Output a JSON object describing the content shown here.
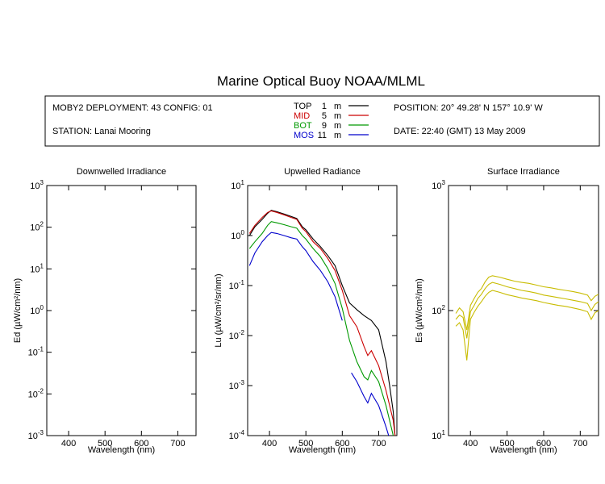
{
  "title": "Marine Optical Buoy NOAA/MLML",
  "header": {
    "deployment": "MOBY2 DEPLOYMENT: 43 CONFIG: 01",
    "station": "STATION: Lanai Mooring",
    "position": "POSITION: 20° 49.28' N   157° 10.9' W",
    "date": "DATE: 22:40 (GMT) 13 May 2009",
    "legend": [
      {
        "name": "TOP",
        "depth": "1",
        "unit": "m",
        "color": "#000000"
      },
      {
        "name": "MID",
        "depth": "5",
        "unit": "m",
        "color": "#cc0000"
      },
      {
        "name": "BOT",
        "depth": "9",
        "unit": "m",
        "color": "#009900"
      },
      {
        "name": "MOS",
        "depth": "11",
        "unit": "m",
        "color": "#0000cc"
      }
    ]
  },
  "chart_data": [
    {
      "type": "line",
      "title": "Downwelled Irradiance",
      "xlabel": "Wavelength (nm)",
      "ylabel": "Ed  (µW/cm²/nm)",
      "xlim": [
        340,
        750
      ],
      "ylim": [
        0.001,
        1000
      ],
      "yscale": "log",
      "xticks": [
        400,
        500,
        600,
        700
      ],
      "yticks": [
        0.001,
        0.01,
        0.1,
        1,
        10,
        100,
        1000
      ],
      "series": []
    },
    {
      "type": "line",
      "title": "Upwelled Radiance",
      "xlabel": "Wavelength (nm)",
      "ylabel": "Lu  (µW/cm²/sr/nm)",
      "xlim": [
        340,
        750
      ],
      "ylim": [
        0.0001,
        10
      ],
      "yscale": "log",
      "xticks": [
        400,
        500,
        600,
        700
      ],
      "yticks": [
        0.0001,
        0.001,
        0.01,
        0.1,
        1,
        10
      ],
      "series": [
        {
          "name": "TOP",
          "color": "#000000",
          "x": [
            345,
            360,
            380,
            395,
            405,
            420,
            440,
            460,
            475,
            490,
            500,
            520,
            540,
            560,
            580,
            600,
            620,
            640,
            660,
            680,
            700,
            720,
            730,
            740,
            745
          ],
          "y": [
            1.0,
            1.5,
            2.1,
            2.8,
            3.2,
            3.0,
            2.7,
            2.4,
            2.2,
            1.5,
            1.3,
            0.85,
            0.6,
            0.4,
            0.25,
            0.1,
            0.045,
            0.033,
            0.025,
            0.02,
            0.013,
            0.003,
            0.001,
            0.0003,
            0.0001
          ]
        },
        {
          "name": "MID",
          "color": "#cc0000",
          "x": [
            345,
            360,
            380,
            395,
            405,
            420,
            440,
            460,
            475,
            490,
            500,
            520,
            540,
            560,
            580,
            600,
            620,
            640,
            660,
            670,
            680,
            700,
            720,
            740,
            745
          ],
          "y": [
            1.1,
            1.6,
            2.3,
            2.9,
            3.1,
            2.9,
            2.6,
            2.3,
            2.1,
            1.4,
            1.2,
            0.75,
            0.55,
            0.35,
            0.2,
            0.08,
            0.025,
            0.015,
            0.006,
            0.004,
            0.005,
            0.0025,
            0.0008,
            0.0002,
            0.0001
          ]
        },
        {
          "name": "BOT",
          "color": "#009900",
          "x": [
            345,
            360,
            380,
            395,
            405,
            420,
            440,
            460,
            475,
            490,
            500,
            520,
            540,
            560,
            580,
            600,
            620,
            640,
            660,
            670,
            680,
            700,
            720,
            740,
            745
          ],
          "y": [
            0.55,
            0.75,
            1.1,
            1.6,
            1.9,
            1.8,
            1.65,
            1.5,
            1.4,
            1.0,
            0.85,
            0.55,
            0.38,
            0.22,
            0.11,
            0.035,
            0.008,
            0.003,
            0.0015,
            0.0013,
            0.002,
            0.0012,
            0.0004,
            0.0001,
            8e-05
          ]
        },
        {
          "name": "MOS",
          "color": "#0000cc",
          "x": [
            345,
            360,
            380,
            395,
            405,
            420,
            440,
            460,
            475,
            490,
            500,
            520,
            540,
            560,
            580,
            600,
            620,
            625,
            640,
            660,
            670,
            680,
            700,
            720,
            740
          ],
          "y": [
            0.25,
            0.45,
            0.75,
            1.0,
            1.15,
            1.1,
            1.0,
            0.9,
            0.85,
            0.6,
            0.5,
            0.3,
            0.2,
            0.12,
            0.06,
            0.02,
            null,
            0.0018,
            0.0012,
            0.0006,
            0.00045,
            0.0007,
            0.0004,
            0.00015,
            5e-05
          ]
        }
      ]
    },
    {
      "type": "line",
      "title": "Surface Irradiance",
      "xlabel": "Wavelength (nm)",
      "ylabel": "Es  (µW/cm²/nm)",
      "xlim": [
        340,
        750
      ],
      "ylim": [
        10,
        1000
      ],
      "yscale": "log",
      "xticks": [
        400,
        500,
        600,
        700
      ],
      "yticks": [
        10,
        100,
        1000
      ],
      "series_color": "#c8bc00",
      "series": [
        {
          "x": [
            360,
            370,
            380,
            390,
            400,
            410,
            420,
            430,
            440,
            450,
            460,
            480,
            500,
            520,
            540,
            560,
            580,
            600,
            620,
            640,
            660,
            680,
            700,
            720,
            730,
            740,
            750
          ],
          "y": [
            95,
            105,
            98,
            70,
            110,
            125,
            140,
            150,
            170,
            185,
            190,
            185,
            178,
            172,
            168,
            165,
            160,
            155,
            152,
            148,
            145,
            142,
            138,
            133,
            120,
            130,
            135
          ]
        },
        {
          "x": [
            360,
            370,
            380,
            390,
            400,
            410,
            420,
            430,
            440,
            450,
            460,
            480,
            500,
            520,
            540,
            560,
            580,
            600,
            620,
            640,
            660,
            680,
            700,
            720,
            730,
            740,
            750
          ],
          "y": [
            85,
            92,
            88,
            60,
            98,
            110,
            125,
            135,
            150,
            162,
            168,
            162,
            155,
            150,
            145,
            142,
            138,
            133,
            130,
            127,
            124,
            121,
            118,
            114,
            100,
            112,
            118
          ]
        },
        {
          "x": [
            360,
            370,
            380,
            390,
            400,
            410,
            420,
            430,
            440,
            450,
            460,
            480,
            500,
            520,
            540,
            560,
            580,
            600,
            620,
            640,
            660,
            680,
            700,
            720,
            730,
            740,
            750
          ],
          "y": [
            75,
            80,
            70,
            40,
            85,
            97,
            108,
            118,
            130,
            140,
            145,
            140,
            134,
            130,
            126,
            123,
            120,
            116,
            113,
            110,
            108,
            105,
            102,
            98,
            85,
            96,
            100
          ]
        }
      ]
    }
  ]
}
